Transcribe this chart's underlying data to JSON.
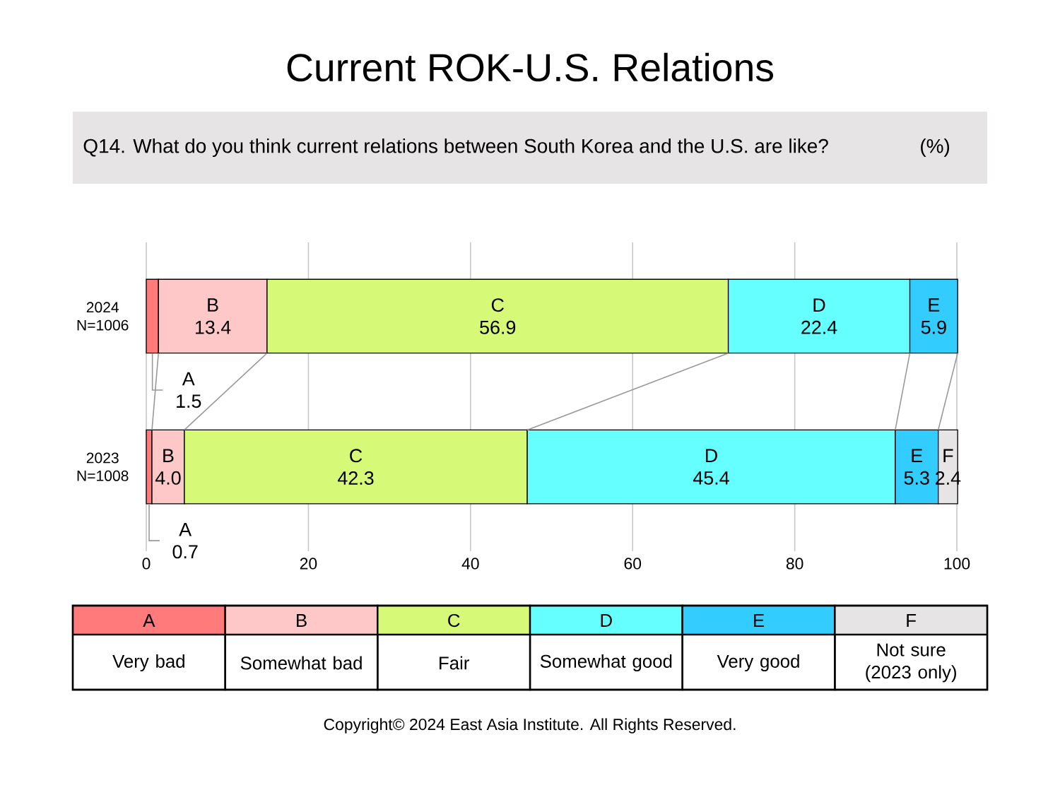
{
  "chart_data": {
    "type": "bar",
    "orientation": "horizontal",
    "stacked": true,
    "title": "Current ROK-U.S. Relations",
    "subtitle": "Q14. What do you think current relations between South Korea and the U.S. are like?",
    "categories": [
      "2024 N=1006",
      "2023 N=1008"
    ],
    "series": [
      {
        "name": "A",
        "color": "#ff7b7b",
        "values": [
          1.5,
          0.7
        ],
        "value_labels": [
          "A 1.5",
          "A 0.7"
        ]
      },
      {
        "name": "B",
        "color": "#ffc8c8",
        "values": [
          13.4,
          4.0
        ],
        "value_labels": [
          "B 13.4",
          "B 4.0"
        ]
      },
      {
        "name": "C",
        "color": "#d6fa78",
        "values": [
          56.9,
          42.3
        ],
        "value_labels": [
          "C 56.9",
          "C 42.3"
        ]
      },
      {
        "name": "D",
        "color": "#66ffff",
        "values": [
          22.4,
          45.4
        ],
        "value_labels": [
          "D 22.4",
          "D 45.4"
        ]
      },
      {
        "name": "E",
        "color": "#33ccff",
        "values": [
          5.9,
          5.3
        ],
        "value_labels": [
          "E 5.9",
          "E 5.3"
        ]
      },
      {
        "name": "F",
        "color": "#e6e4e4",
        "values": [
          null,
          2.4
        ],
        "value_labels": [
          null,
          "F 2.4"
        ]
      }
    ],
    "xlim": [
      0,
      100
    ],
    "xticks": [
      0,
      20,
      40,
      60,
      80,
      100
    ],
    "grid": "x",
    "legend": "bottom",
    "annotations": [
      "(%)",
      "Very bad",
      "Somewhat bad",
      "Fair",
      "Somewhat good",
      "Very good",
      "Not sure (2023 only)",
      "Copyright© 2024 East Asia Institute. All Rights Reserved."
    ]
  }
}
